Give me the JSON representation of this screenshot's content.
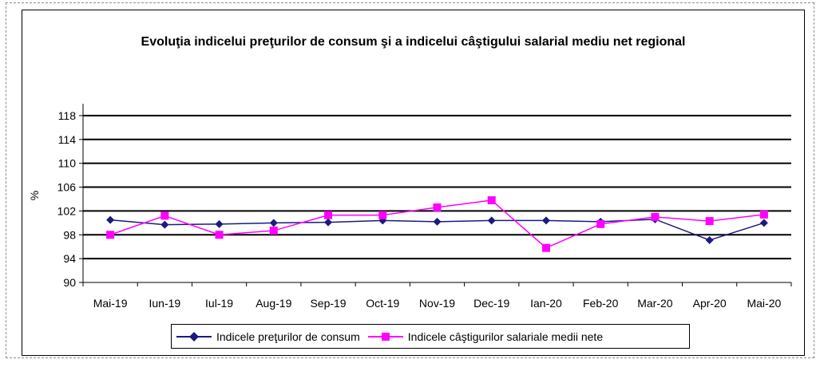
{
  "chart_data": {
    "type": "line",
    "title": "Evoluţia indicelui preţurilor de consum şi a indicelui câştigului salarial mediu net regional",
    "xlabel": "",
    "ylabel": "%",
    "ylim": [
      90,
      120
    ],
    "yticks": [
      90,
      94,
      98,
      102,
      106,
      110,
      114,
      118
    ],
    "grid": true,
    "legend_position": "bottom",
    "categories": [
      "Mai-19",
      "Iun-19",
      "Iul-19",
      "Aug-19",
      "Sep-19",
      "Oct-19",
      "Nov-19",
      "Dec-19",
      "Ian-20",
      "Feb-20",
      "Mar-20",
      "Apr-20",
      "Mai-20"
    ],
    "series": [
      {
        "name": "Indicele preţurilor de consum",
        "color": "#1a1a80",
        "marker": "diamond",
        "values": [
          100.5,
          99.7,
          99.8,
          100.0,
          100.1,
          100.4,
          100.2,
          100.4,
          100.4,
          100.2,
          100.6,
          97.1,
          100.0
        ]
      },
      {
        "name": "Indicele câştigurilor salariale medii nete",
        "color": "#ff00ff",
        "marker": "square",
        "values": [
          98.0,
          101.2,
          98.0,
          98.7,
          101.3,
          101.3,
          102.6,
          103.8,
          95.8,
          99.8,
          101.0,
          100.3,
          101.4
        ]
      }
    ]
  }
}
